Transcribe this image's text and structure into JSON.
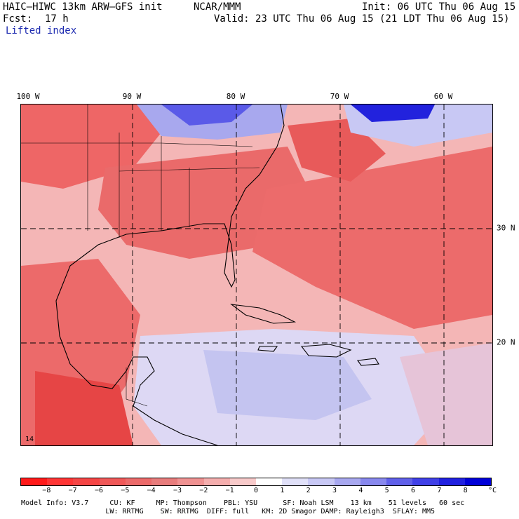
{
  "header": {
    "model_title": "HAIC–HIWC 13km ARW–GFS init",
    "org": "NCAR/MMM",
    "init": "Init: 06 UTC Thu 06 Aug 15",
    "fcst_label": "Fcst:",
    "fcst_value": "17 h",
    "valid": "Valid: 23 UTC Thu 06 Aug 15 (21 LDT Thu 06 Aug 15)",
    "field_name": "Lifted index"
  },
  "map": {
    "longitude_labels": [
      "100 W",
      "90 W",
      "80 W",
      "70 W",
      "60 W"
    ],
    "latitude_labels": [
      "30 N",
      "20 N"
    ],
    "inset_label": "14"
  },
  "colorbar": {
    "tick_labels": [
      "−8",
      "−7",
      "−6",
      "−5",
      "−4",
      "−3",
      "−2",
      "−1",
      "0",
      "1",
      "2",
      "3",
      "4",
      "5",
      "6",
      "7",
      "8"
    ],
    "unit": "°C",
    "colors": [
      "#ff1a1a",
      "#ff3535",
      "#f54545",
      "#f05858",
      "#ec6a6a",
      "#e87c7c",
      "#f09292",
      "#f5aeae",
      "#f8caca",
      "#ffffff",
      "#e0e0f8",
      "#c8c8f5",
      "#a8a8f0",
      "#8888ee",
      "#6060ea",
      "#4040e8",
      "#2020e0",
      "#0000d8"
    ]
  },
  "model_info": {
    "line1": "Model Info: V3.7     CU: KF     MP: Thompson    PBL: YSU      SF: Noah LSM    13 km    51 levels   60 sec",
    "line2": "                    LW: RRTMG    SW: RRTMG  DIFF: full   KM: 2D Smagor DAMP: Rayleigh3  SFLAY: MM5"
  }
}
